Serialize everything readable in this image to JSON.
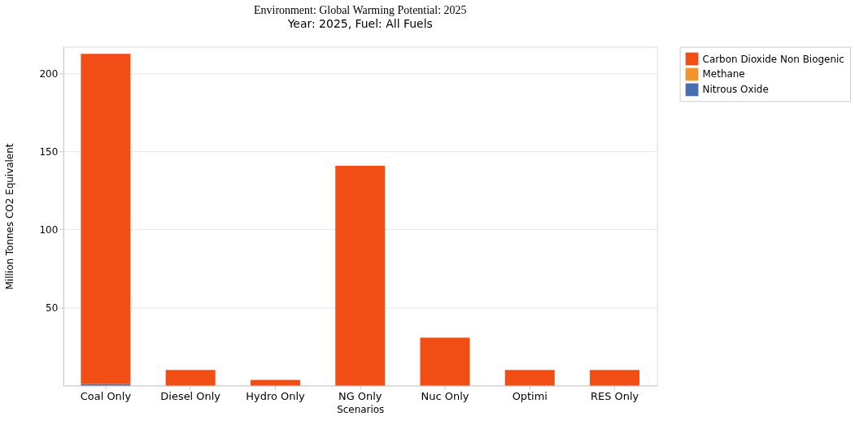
{
  "chart_data": {
    "type": "bar",
    "title": "Environment: Global Warming Potential: 2025",
    "subtitle": "Year: 2025, Fuel: All Fuels",
    "xlabel": "Scenarios",
    "ylabel": "Million Tonnes CO2 Equivalent",
    "categories": [
      "Coal Only",
      "Diesel Only",
      "Hydro Only",
      "NG Only",
      "Nuc Only",
      "Optimi",
      "RES Only"
    ],
    "stacked": true,
    "series": [
      {
        "name": "Nitrous Oxide",
        "color": "#4a6fb0",
        "values": [
          1,
          null,
          null,
          null,
          null,
          null,
          null
        ]
      },
      {
        "name": "Methane",
        "color": "#f39433",
        "values": [
          null,
          null,
          null,
          null,
          null,
          null,
          null
        ]
      },
      {
        "name": "Carbon Dioxide Non Biogenic",
        "color": "#f04e14",
        "values": [
          211.5,
          10,
          3.6,
          140.8,
          30.6,
          10,
          10
        ]
      }
    ],
    "ylim": [
      0,
      217
    ],
    "yticks": [
      50,
      100,
      150,
      200
    ],
    "grid": "y",
    "legend": "right"
  }
}
